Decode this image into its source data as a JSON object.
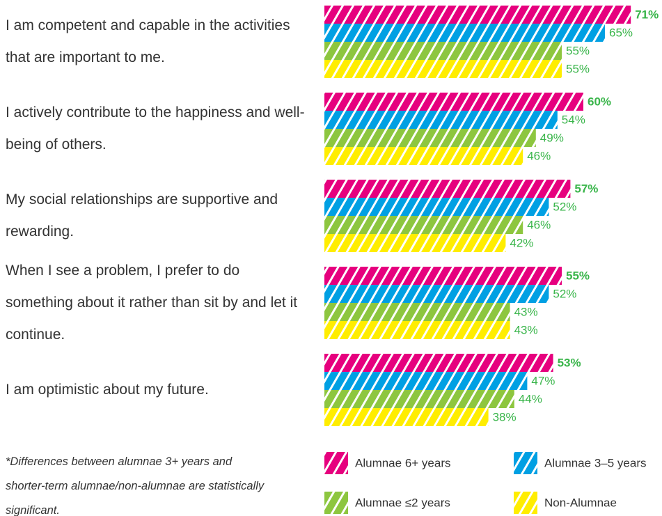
{
  "chart_data": {
    "type": "hbar",
    "categories": [
      "I am competent and capable in the activities that are important to me.",
      "I actively contribute to the happiness and well-being of others.",
      "My social relationships are supportive and rewarding.",
      "When I see a problem, I prefer to do something about it rather than sit by and let it continue.",
      "I am optimistic about my future."
    ],
    "series": [
      {
        "name": "Alumnae 6+ years",
        "color": "#e6007e",
        "values": [
          71,
          60,
          57,
          55,
          53
        ],
        "value_labels": [
          "71%",
          "60%",
          "57%",
          "55%",
          "53%"
        ]
      },
      {
        "name": "Alumnae 3–5 years",
        "color": "#00a0e3",
        "values": [
          65,
          54,
          52,
          52,
          47
        ],
        "value_labels": [
          "65%",
          "54%",
          "52%",
          "52%",
          "47%"
        ]
      },
      {
        "name": "Alumnae ≤2 years",
        "color": "#8dc63f",
        "values": [
          55,
          49,
          46,
          43,
          44
        ],
        "value_labels": [
          "55%",
          "49%",
          "46%",
          "43%",
          "44%"
        ]
      },
      {
        "name": "Non-Alumnae",
        "color": "#ffed00",
        "values": [
          55,
          46,
          42,
          43,
          38
        ],
        "value_labels": [
          "55%",
          "46%",
          "42%",
          "43%",
          "38%"
        ]
      }
    ],
    "label_color": "#39b54a",
    "footnote": "*Differences between alumnae 3+ years and shorter-term alumnae/non-alumnae are statistically significant."
  }
}
